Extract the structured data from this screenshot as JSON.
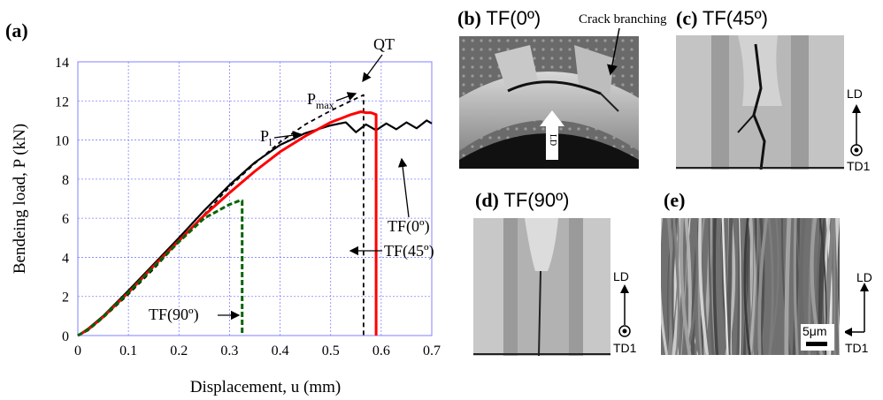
{
  "panels": {
    "a": {
      "label": "(a)"
    },
    "b": {
      "label": "(b)",
      "title": "TF(0º)",
      "annotation": "Crack branching",
      "arrow_text": "LD"
    },
    "c": {
      "label": "(c)",
      "title": "TF(45º)",
      "axis_up": "LD",
      "axis_out": "TD1"
    },
    "d": {
      "label": "(d)",
      "title": "TF(90º)",
      "axis_up": "LD",
      "axis_out": "TD1"
    },
    "e": {
      "label": "(e)",
      "scale_bar": "5μm",
      "axis_up": "LD",
      "axis_right": "TD1"
    }
  },
  "colors": {
    "QT": "#000000",
    "TF0": "#000000",
    "TF45": "#ff0000",
    "TF90": "#006400",
    "grid": "#8080ff"
  },
  "chart_data": {
    "type": "line",
    "xlabel": "Displacement,  u (mm)",
    "ylabel": "Bendeing load,  P (kN)",
    "xlim": [
      0,
      0.7
    ],
    "ylim": [
      0,
      14
    ],
    "x_ticks": [
      "0",
      "0.1",
      "0.2",
      "0.3",
      "0.4",
      "0.5",
      "0.6",
      "0.7"
    ],
    "y_ticks": [
      "0",
      "2",
      "4",
      "6",
      "8",
      "10",
      "12",
      "14"
    ],
    "grid": true,
    "series": [
      {
        "name": "QT",
        "style": "dashed",
        "color": "#000000",
        "x": [
          0,
          0.02,
          0.05,
          0.1,
          0.15,
          0.2,
          0.25,
          0.3,
          0.35,
          0.4,
          0.45,
          0.5,
          0.54,
          0.565,
          0.565,
          0.565
        ],
        "y": [
          0,
          0.25,
          0.9,
          2.1,
          3.4,
          4.8,
          6.2,
          7.6,
          8.8,
          9.9,
          10.8,
          11.5,
          12.0,
          12.3,
          5.0,
          0
        ]
      },
      {
        "name": "TF(0º)",
        "style": "solid",
        "color": "#000000",
        "x": [
          0,
          0.02,
          0.05,
          0.1,
          0.15,
          0.2,
          0.25,
          0.3,
          0.35,
          0.4,
          0.45,
          0.5,
          0.53,
          0.55,
          0.57,
          0.59,
          0.61,
          0.63,
          0.65,
          0.67,
          0.69,
          0.7
        ],
        "y": [
          0,
          0.35,
          1.0,
          2.3,
          3.65,
          5.0,
          6.4,
          7.7,
          8.85,
          9.75,
          10.35,
          10.75,
          10.9,
          10.4,
          10.8,
          10.5,
          10.85,
          10.55,
          10.9,
          10.6,
          11.0,
          10.85
        ]
      },
      {
        "name": "TF(45º)",
        "style": "solid",
        "color": "#ff0000",
        "x": [
          0,
          0.02,
          0.05,
          0.1,
          0.15,
          0.2,
          0.25,
          0.3,
          0.35,
          0.4,
          0.45,
          0.5,
          0.54,
          0.56,
          0.57,
          0.58,
          0.59,
          0.59,
          0.59
        ],
        "y": [
          0,
          0.3,
          0.95,
          2.2,
          3.55,
          4.85,
          6.15,
          7.3,
          8.4,
          9.4,
          10.2,
          10.9,
          11.3,
          11.45,
          11.4,
          11.4,
          11.3,
          5.0,
          0
        ]
      },
      {
        "name": "TF(90º)",
        "style": "dashed",
        "color": "#006400",
        "x": [
          0,
          0.02,
          0.05,
          0.1,
          0.15,
          0.2,
          0.25,
          0.3,
          0.32,
          0.325,
          0.325
        ],
        "y": [
          0,
          0.3,
          0.95,
          2.2,
          3.5,
          4.8,
          6.0,
          6.7,
          6.9,
          6.9,
          0
        ]
      }
    ],
    "annotations": [
      {
        "text": "QT"
      },
      {
        "text": "P",
        "sub": "max"
      },
      {
        "text": "P",
        "sub": "l"
      },
      {
        "text": "TF(0º)"
      },
      {
        "text": "TF(45º)"
      },
      {
        "text": "TF(90º)"
      }
    ]
  }
}
